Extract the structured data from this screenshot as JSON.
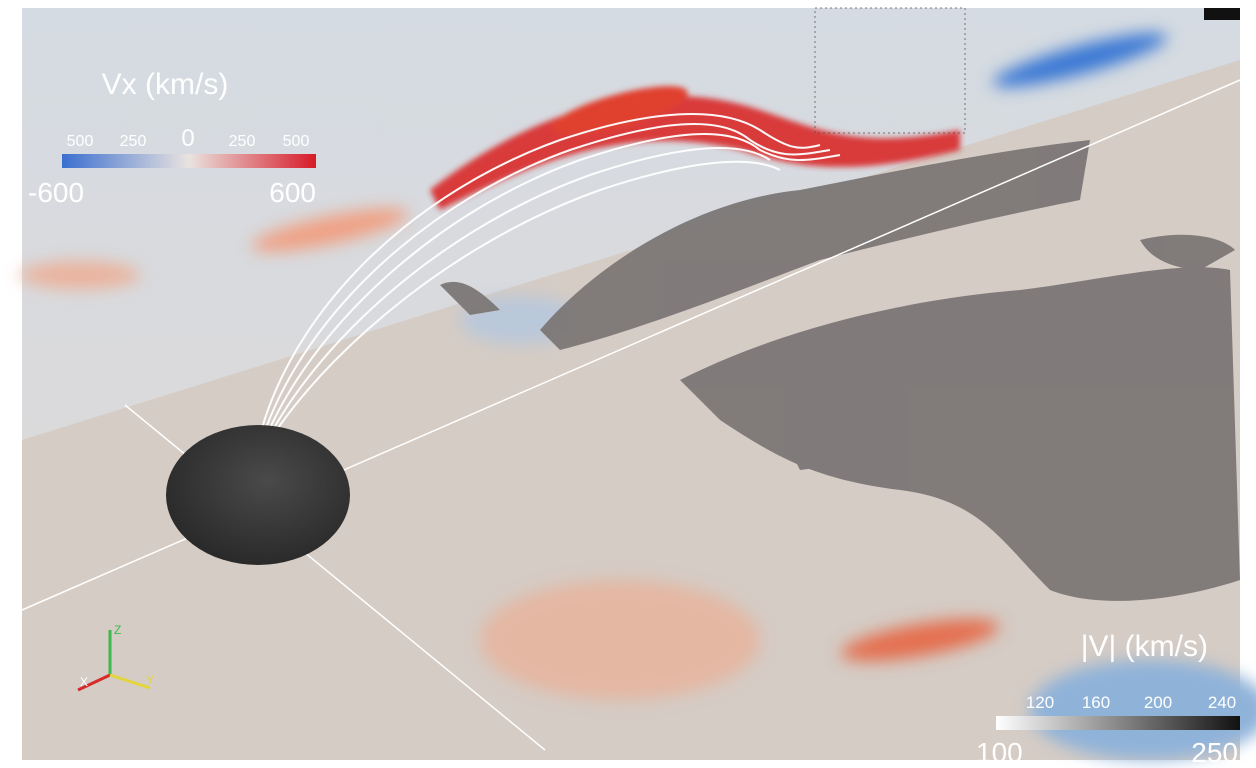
{
  "vx_legend": {
    "title": "Vx (km/s)",
    "ticks": [
      "500",
      "250",
      "0",
      "250",
      "500"
    ],
    "min_label": "-600",
    "max_label": "600"
  },
  "v_legend": {
    "title": "|V| (km/s)",
    "ticks": [
      "120",
      "160",
      "200",
      "240"
    ],
    "min_label": "100",
    "max_label": "250"
  },
  "axes_triad": {
    "z": "Z",
    "x": "X",
    "y": "Y"
  }
}
